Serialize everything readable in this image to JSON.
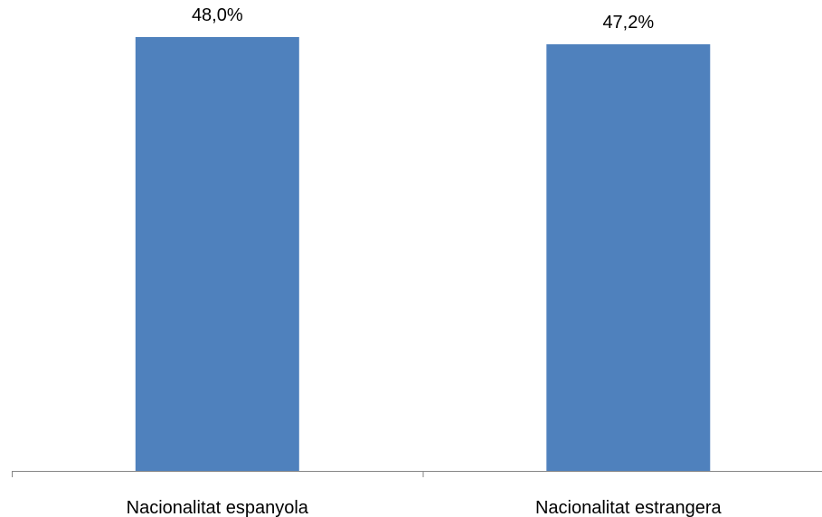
{
  "chart_data": {
    "type": "bar",
    "title": "",
    "xlabel": "",
    "ylabel": "",
    "categories": [
      "Nacionalitat espanyola",
      "Nacionalitat estrangera"
    ],
    "values": [
      48.0,
      47.2
    ],
    "data_labels": [
      "48,0%",
      "47,2%"
    ],
    "ylim": [
      0,
      50
    ],
    "grid": false,
    "legend": "none",
    "colors": {
      "bar": "#4F81BD",
      "axis": "#868686",
      "text": "#000000"
    }
  }
}
